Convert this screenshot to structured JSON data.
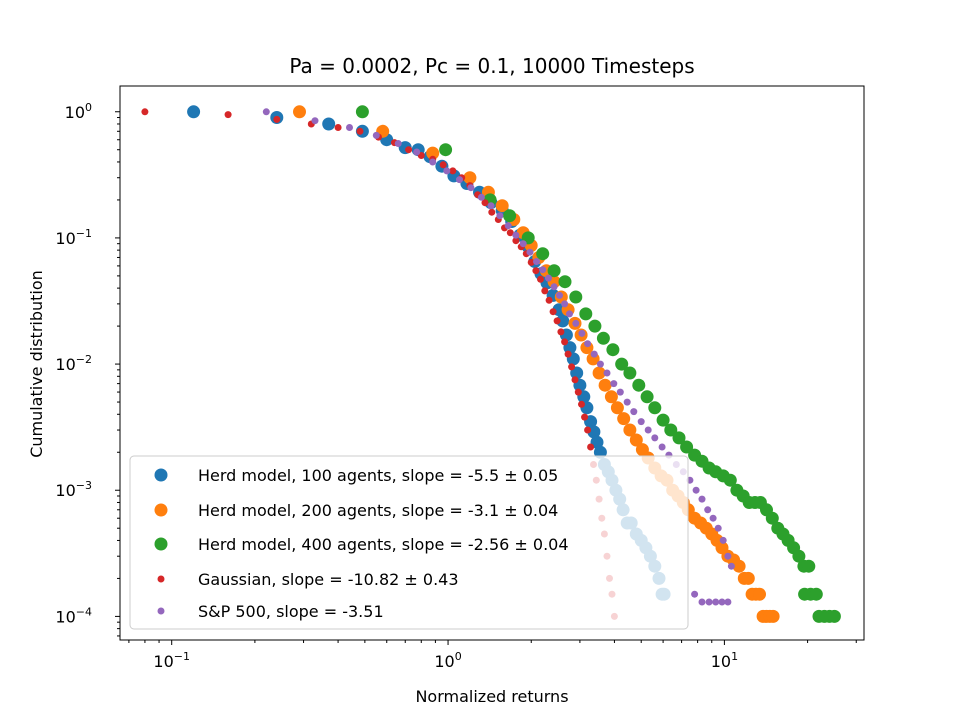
{
  "chart_data": {
    "type": "scatter",
    "title": "Pa = 0.0002, Pc = 0.1, 10000 Timesteps",
    "xlabel": "Normalized returns",
    "ylabel": "Cumulative distribution",
    "xscale": "log",
    "yscale": "log",
    "xlim": [
      0.065,
      32
    ],
    "ylim": [
      6.5e-05,
      1.6
    ],
    "x_ticks": [
      {
        "value": 0.1,
        "base": "10",
        "exp": "−1"
      },
      {
        "value": 1,
        "base": "10",
        "exp": "0"
      },
      {
        "value": 10,
        "base": "10",
        "exp": "1"
      }
    ],
    "y_ticks": [
      {
        "value": 1,
        "base": "10",
        "exp": "0"
      },
      {
        "value": 0.1,
        "base": "10",
        "exp": "−1"
      },
      {
        "value": 0.01,
        "base": "10",
        "exp": "−2"
      },
      {
        "value": 0.001,
        "base": "10",
        "exp": "−3"
      },
      {
        "value": 0.0001,
        "base": "10",
        "exp": "−4"
      }
    ],
    "legend_position": "lower-left",
    "series": [
      {
        "name": "Herd model, 100 agents, slope = -5.5 ± 0.05",
        "color": "#1f77b4",
        "marker_size": "large",
        "points": [
          [
            0.12,
            1.0
          ],
          [
            0.24,
            0.9
          ],
          [
            0.37,
            0.8
          ],
          [
            0.49,
            0.7
          ],
          [
            0.6,
            0.6
          ],
          [
            0.7,
            0.52
          ],
          [
            0.78,
            0.5
          ],
          [
            0.86,
            0.44
          ],
          [
            0.95,
            0.37
          ],
          [
            1.05,
            0.31
          ],
          [
            1.17,
            0.27
          ],
          [
            1.3,
            0.23
          ],
          [
            1.43,
            0.19
          ],
          [
            1.57,
            0.165
          ],
          [
            1.7,
            0.135
          ],
          [
            1.82,
            0.105
          ],
          [
            1.95,
            0.085
          ],
          [
            2.06,
            0.065
          ],
          [
            2.17,
            0.052
          ],
          [
            2.28,
            0.044
          ],
          [
            2.4,
            0.035
          ],
          [
            2.52,
            0.027
          ],
          [
            2.6,
            0.022
          ],
          [
            2.68,
            0.017
          ],
          [
            2.76,
            0.0135
          ],
          [
            2.84,
            0.011
          ],
          [
            2.92,
            0.0085
          ],
          [
            3.0,
            0.0068
          ],
          [
            3.1,
            0.0055
          ],
          [
            3.18,
            0.0045
          ],
          [
            3.28,
            0.0035
          ],
          [
            3.37,
            0.0029
          ],
          [
            3.46,
            0.0024
          ],
          [
            3.56,
            0.002
          ],
          [
            3.68,
            0.0016
          ],
          [
            3.8,
            0.0014
          ],
          [
            3.92,
            0.0012
          ],
          [
            4.05,
            0.001
          ],
          [
            4.18,
            0.00085
          ],
          [
            4.3,
            0.0007
          ],
          [
            4.45,
            0.00055
          ],
          [
            4.6,
            0.00055
          ],
          [
            4.8,
            0.00045
          ],
          [
            5.0,
            0.0004
          ],
          [
            5.2,
            0.00035
          ],
          [
            5.4,
            0.0003
          ],
          [
            5.6,
            0.00025
          ],
          [
            5.8,
            0.0002
          ],
          [
            5.95,
            0.00015
          ],
          [
            6.05,
            0.00015
          ]
        ]
      },
      {
        "name": "Herd model, 200 agents, slope = -3.1 ± 0.04",
        "color": "#ff7f0e",
        "marker_size": "large",
        "points": [
          [
            0.29,
            1.0
          ],
          [
            0.58,
            0.7
          ],
          [
            0.88,
            0.47
          ],
          [
            1.2,
            0.3
          ],
          [
            1.4,
            0.23
          ],
          [
            1.57,
            0.18
          ],
          [
            1.73,
            0.14
          ],
          [
            1.87,
            0.11
          ],
          [
            2.0,
            0.087
          ],
          [
            2.13,
            0.07
          ],
          [
            2.27,
            0.055
          ],
          [
            2.42,
            0.045
          ],
          [
            2.57,
            0.034
          ],
          [
            2.72,
            0.027
          ],
          [
            2.88,
            0.021
          ],
          [
            3.03,
            0.017
          ],
          [
            3.18,
            0.0135
          ],
          [
            3.35,
            0.011
          ],
          [
            3.52,
            0.0085
          ],
          [
            3.7,
            0.0068
          ],
          [
            3.9,
            0.0055
          ],
          [
            4.1,
            0.0045
          ],
          [
            4.32,
            0.0037
          ],
          [
            4.55,
            0.003
          ],
          [
            4.8,
            0.0025
          ],
          [
            5.05,
            0.0021
          ],
          [
            5.3,
            0.0018
          ],
          [
            5.6,
            0.0015
          ],
          [
            5.9,
            0.0013
          ],
          [
            6.2,
            0.0012
          ],
          [
            6.5,
            0.001
          ],
          [
            6.8,
            0.0009
          ],
          [
            7.1,
            0.0008
          ],
          [
            7.4,
            0.0007
          ],
          [
            7.8,
            0.0006
          ],
          [
            8.2,
            0.00055
          ],
          [
            8.6,
            0.0005
          ],
          [
            9.0,
            0.00045
          ],
          [
            9.4,
            0.0004
          ],
          [
            9.8,
            0.00035
          ],
          [
            10.3,
            0.0003
          ],
          [
            10.8,
            0.00028
          ],
          [
            11.3,
            0.00025
          ],
          [
            11.8,
            0.0002
          ],
          [
            12.2,
            0.0002
          ],
          [
            12.6,
            0.00015
          ],
          [
            13.0,
            0.00015
          ],
          [
            13.4,
            0.00015
          ],
          [
            13.8,
            0.0001
          ],
          [
            14.2,
            0.0001
          ],
          [
            14.6,
            0.0001
          ],
          [
            15.0,
            0.0001
          ]
        ]
      },
      {
        "name": "Herd model, 400 agents, slope = -2.56 ± 0.04",
        "color": "#2ca02c",
        "marker_size": "large",
        "points": [
          [
            0.49,
            1.0
          ],
          [
            0.98,
            0.5
          ],
          [
            1.42,
            0.2
          ],
          [
            1.67,
            0.15
          ],
          [
            1.95,
            0.1
          ],
          [
            2.2,
            0.075
          ],
          [
            2.42,
            0.055
          ],
          [
            2.65,
            0.045
          ],
          [
            2.9,
            0.034
          ],
          [
            3.15,
            0.025
          ],
          [
            3.4,
            0.02
          ],
          [
            3.65,
            0.016
          ],
          [
            3.95,
            0.013
          ],
          [
            4.25,
            0.01
          ],
          [
            4.55,
            0.0085
          ],
          [
            4.9,
            0.0068
          ],
          [
            5.25,
            0.0055
          ],
          [
            5.6,
            0.0045
          ],
          [
            6.0,
            0.0036
          ],
          [
            6.4,
            0.003
          ],
          [
            6.85,
            0.0026
          ],
          [
            7.3,
            0.0022
          ],
          [
            7.8,
            0.0019
          ],
          [
            8.3,
            0.0017
          ],
          [
            8.8,
            0.0015
          ],
          [
            9.3,
            0.0014
          ],
          [
            9.9,
            0.0013
          ],
          [
            10.5,
            0.0012
          ],
          [
            11.1,
            0.001
          ],
          [
            11.7,
            0.0009
          ],
          [
            12.3,
            0.0008
          ],
          [
            12.9,
            0.0008
          ],
          [
            13.5,
            0.0008
          ],
          [
            14.2,
            0.0007
          ],
          [
            14.9,
            0.0006
          ],
          [
            15.6,
            0.0005
          ],
          [
            16.3,
            0.00045
          ],
          [
            17.0,
            0.0004
          ],
          [
            17.8,
            0.00035
          ],
          [
            18.6,
            0.0003
          ],
          [
            19.4,
            0.00025
          ],
          [
            20.2,
            0.00025
          ],
          [
            19.5,
            0.00015
          ],
          [
            20.5,
            0.00015
          ],
          [
            21.5,
            0.00015
          ],
          [
            22.0,
            0.0001
          ],
          [
            23.0,
            0.0001
          ],
          [
            24.0,
            0.0001
          ],
          [
            25.0,
            0.0001
          ]
        ]
      },
      {
        "name": "Gaussian, slope = -10.82 ± 0.43",
        "color": "#d62728",
        "marker_size": "small",
        "points": [
          [
            0.08,
            1.0
          ],
          [
            0.16,
            0.95
          ],
          [
            0.24,
            0.87
          ],
          [
            0.32,
            0.8
          ],
          [
            0.4,
            0.75
          ],
          [
            0.48,
            0.7
          ],
          [
            0.56,
            0.63
          ],
          [
            0.64,
            0.57
          ],
          [
            0.72,
            0.5
          ],
          [
            0.8,
            0.45
          ],
          [
            0.88,
            0.42
          ],
          [
            0.96,
            0.38
          ],
          [
            1.04,
            0.34
          ],
          [
            1.12,
            0.3
          ],
          [
            1.2,
            0.26
          ],
          [
            1.28,
            0.22
          ],
          [
            1.36,
            0.19
          ],
          [
            1.44,
            0.16
          ],
          [
            1.52,
            0.14
          ],
          [
            1.6,
            0.12
          ],
          [
            1.68,
            0.11
          ],
          [
            1.76,
            0.095
          ],
          [
            1.84,
            0.085
          ],
          [
            1.92,
            0.075
          ],
          [
            2.0,
            0.064
          ],
          [
            2.08,
            0.055
          ],
          [
            2.16,
            0.047
          ],
          [
            2.24,
            0.038
          ],
          [
            2.32,
            0.032
          ],
          [
            2.4,
            0.026
          ],
          [
            2.48,
            0.022
          ],
          [
            2.56,
            0.018
          ],
          [
            2.64,
            0.015
          ],
          [
            2.72,
            0.012
          ],
          [
            2.8,
            0.0095
          ],
          [
            2.88,
            0.0075
          ],
          [
            2.96,
            0.006
          ],
          [
            3.04,
            0.0048
          ],
          [
            3.12,
            0.0038
          ],
          [
            3.2,
            0.003
          ],
          [
            3.28,
            0.0022
          ],
          [
            3.36,
            0.0016
          ],
          [
            3.44,
            0.0012
          ],
          [
            3.52,
            0.00085
          ],
          [
            3.6,
            0.0006
          ],
          [
            3.68,
            0.00045
          ],
          [
            3.76,
            0.0003
          ],
          [
            3.84,
            0.0002
          ],
          [
            3.92,
            0.00015
          ],
          [
            4.0,
            0.0001
          ]
        ]
      },
      {
        "name": "S&P 500, slope = -3.51",
        "color": "#9467bd",
        "marker_size": "small",
        "points": [
          [
            0.22,
            1.0
          ],
          [
            0.33,
            0.85
          ],
          [
            0.44,
            0.75
          ],
          [
            0.55,
            0.65
          ],
          [
            0.66,
            0.56
          ],
          [
            0.77,
            0.48
          ],
          [
            0.88,
            0.4
          ],
          [
            0.99,
            0.34
          ],
          [
            1.1,
            0.29
          ],
          [
            1.21,
            0.25
          ],
          [
            1.32,
            0.21
          ],
          [
            1.43,
            0.18
          ],
          [
            1.54,
            0.15
          ],
          [
            1.65,
            0.125
          ],
          [
            1.76,
            0.105
          ],
          [
            1.87,
            0.09
          ],
          [
            1.98,
            0.077
          ],
          [
            2.09,
            0.065
          ],
          [
            2.2,
            0.056
          ],
          [
            2.31,
            0.048
          ],
          [
            2.42,
            0.041
          ],
          [
            2.53,
            0.035
          ],
          [
            2.64,
            0.03
          ],
          [
            2.75,
            0.025
          ],
          [
            2.9,
            0.021
          ],
          [
            3.05,
            0.0175
          ],
          [
            3.2,
            0.0145
          ],
          [
            3.38,
            0.012
          ],
          [
            3.56,
            0.01
          ],
          [
            3.76,
            0.0085
          ],
          [
            3.98,
            0.007
          ],
          [
            4.2,
            0.006
          ],
          [
            4.45,
            0.005
          ],
          [
            4.7,
            0.0042
          ],
          [
            5.0,
            0.0035
          ],
          [
            5.3,
            0.003
          ],
          [
            5.6,
            0.0026
          ],
          [
            5.95,
            0.0022
          ],
          [
            6.3,
            0.0019
          ],
          [
            6.7,
            0.0016
          ],
          [
            7.1,
            0.0014
          ],
          [
            7.5,
            0.0012
          ],
          [
            7.9,
            0.001
          ],
          [
            8.3,
            0.00085
          ],
          [
            8.7,
            0.0007
          ],
          [
            9.1,
            0.0006
          ],
          [
            9.5,
            0.0005
          ],
          [
            9.9,
            0.0004
          ],
          [
            10.3,
            0.0003
          ],
          [
            10.6,
            0.00025
          ],
          [
            7.8,
            0.00015
          ],
          [
            8.3,
            0.00013
          ],
          [
            8.8,
            0.00013
          ],
          [
            9.3,
            0.00013
          ],
          [
            9.8,
            0.00013
          ],
          [
            10.3,
            0.00013
          ]
        ]
      }
    ]
  }
}
